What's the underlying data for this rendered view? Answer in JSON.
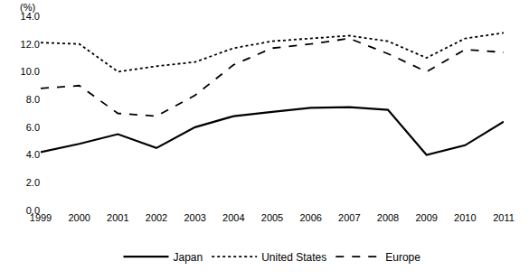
{
  "chart_data": {
    "type": "line",
    "ylabel": "(%)",
    "categories": [
      "1999",
      "2000",
      "2001",
      "2002",
      "2003",
      "2004",
      "2005",
      "2006",
      "2007",
      "2008",
      "2009",
      "2010",
      "2011"
    ],
    "series": [
      {
        "name": "Japan",
        "color": "#000000",
        "line_style": "solid",
        "values": [
          4.2,
          4.8,
          5.5,
          4.5,
          6.0,
          6.8,
          7.1,
          7.4,
          7.45,
          7.25,
          4.0,
          4.7,
          6.4
        ]
      },
      {
        "name": "United States",
        "color": "#000000",
        "line_style": "dot",
        "values": [
          12.1,
          12.0,
          10.0,
          10.4,
          10.7,
          11.7,
          12.2,
          12.4,
          12.6,
          12.2,
          11.0,
          12.4,
          12.8
        ]
      },
      {
        "name": "Europe",
        "color": "#000000",
        "line_style": "dash",
        "values": [
          8.8,
          9.0,
          7.0,
          6.8,
          8.3,
          10.5,
          11.7,
          12.0,
          12.4,
          11.3,
          10.0,
          11.6,
          11.4
        ]
      }
    ],
    "ylim": [
      0,
      14
    ],
    "yticks": [
      {
        "value": 0,
        "label": "0.0"
      },
      {
        "value": 2,
        "label": "2.0"
      },
      {
        "value": 4,
        "label": "4.0"
      },
      {
        "value": 6,
        "label": "6.0"
      },
      {
        "value": 8,
        "label": "8.0"
      },
      {
        "value": 10,
        "label": "10.0"
      },
      {
        "value": 12,
        "label": "12.0"
      },
      {
        "value": 14,
        "label": "14.0"
      }
    ],
    "grid": false,
    "legend": "bottom"
  }
}
